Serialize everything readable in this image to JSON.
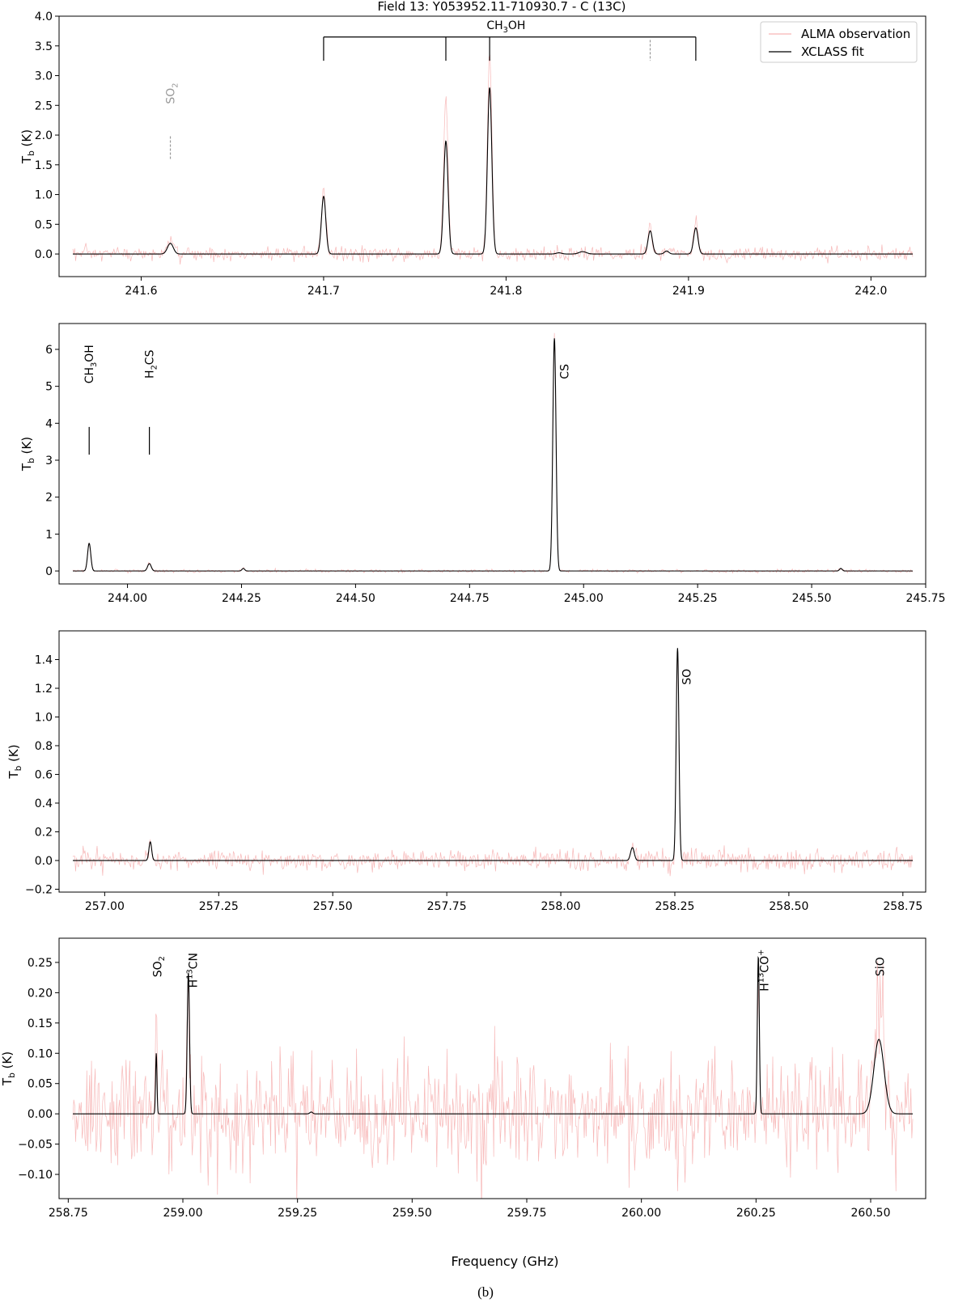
{
  "figure": {
    "title": "Field 13: Y053952.11-710930.7 - C (13C)",
    "caption": "(b)",
    "xlabel": "Frequency (GHz)"
  },
  "legend": {
    "placement": "top-right",
    "entries": [
      {
        "label": "ALMA observation",
        "color": "#f4a0a0"
      },
      {
        "label": "XCLASS fit",
        "color": "#000000"
      }
    ]
  },
  "colors": {
    "observation": "#f4a0a0",
    "fit": "#000000",
    "secondary_marker": "#999999"
  },
  "chart_data": [
    {
      "type": "line",
      "ylabel": "T_b (K)",
      "xlim": [
        241.555,
        242.03
      ],
      "ylim": [
        -0.38,
        4.0
      ],
      "xticks": [
        241.6,
        241.7,
        241.8,
        241.9,
        242.0
      ],
      "xtick_labels": [
        "241.6",
        "241.7",
        "241.8",
        "241.9",
        "242.0"
      ],
      "yticks": [
        0.0,
        0.5,
        1.0,
        1.5,
        2.0,
        2.5,
        3.0,
        3.5,
        4.0
      ],
      "ytick_labels": [
        "0.0",
        "0.5",
        "1.0",
        "1.5",
        "2.0",
        "2.5",
        "3.0",
        "3.5",
        "4.0"
      ],
      "noise_rms": 0.06,
      "series": [
        {
          "name": "XCLASS fit",
          "peaks": [
            [
              241.616,
              0.18,
              0.0016
            ],
            [
              241.7,
              0.97,
              0.0012
            ],
            [
              241.767,
              1.9,
              0.0012
            ],
            [
              241.791,
              2.8,
              0.0012
            ],
            [
              241.829,
              0.02,
              0.0015
            ],
            [
              241.842,
              0.04,
              0.002
            ],
            [
              241.879,
              0.39,
              0.0012
            ],
            [
              241.888,
              0.05,
              0.0012
            ],
            [
              241.904,
              0.44,
              0.0012
            ]
          ]
        },
        {
          "name": "ALMA observation",
          "peak_scale": [
            1.2,
            1.05,
            1.4,
            1.2,
            1.0,
            1.0,
            1.0,
            1.0,
            1.3
          ]
        }
      ],
      "annotations": [
        {
          "label": "SO2",
          "secondary": true,
          "x": 241.616,
          "y_text": 2.7,
          "tick": [
            1.6,
            2.0
          ]
        },
        {
          "label": "CH3OH",
          "bracket": {
            "y_top": 3.65,
            "y_bottom": 3.25,
            "x_start": 241.7,
            "x_end": 241.904,
            "legs": [
              241.7,
              241.767,
              241.791,
              241.904
            ],
            "dashed_legs": [
              241.879
            ],
            "label_x": 241.8,
            "label_y": 3.78
          }
        }
      ]
    },
    {
      "type": "line",
      "ylabel": "T_b (K)",
      "xlim": [
        243.85,
        245.75
      ],
      "ylim": [
        -0.35,
        6.7
      ],
      "xticks": [
        244.0,
        244.25,
        244.5,
        244.75,
        245.0,
        245.25,
        245.5,
        245.75
      ],
      "xtick_labels": [
        "244.00",
        "244.25",
        "244.50",
        "244.75",
        "245.00",
        "245.25",
        "245.50",
        "245.75"
      ],
      "yticks": [
        0,
        1,
        2,
        3,
        4,
        5,
        6
      ],
      "ytick_labels": [
        "0",
        "1",
        "2",
        "3",
        "4",
        "5",
        "6"
      ],
      "noise_rms": 0.02,
      "series": [
        {
          "name": "XCLASS fit",
          "peaks": [
            [
              243.916,
              0.75,
              0.0035
            ],
            [
              244.048,
              0.2,
              0.004
            ],
            [
              244.254,
              0.07,
              0.003
            ],
            [
              244.936,
              6.3,
              0.0035
            ],
            [
              245.564,
              0.07,
              0.003
            ]
          ]
        },
        {
          "name": "ALMA observation",
          "peak_scale": [
            1.0,
            1.0,
            1.0,
            1.02,
            1.0
          ]
        }
      ],
      "annotations": [
        {
          "label": "CH3OH",
          "x": 243.916,
          "y_text": 5.6,
          "tick": [
            3.15,
            3.9
          ]
        },
        {
          "label": "H2CS",
          "x": 244.048,
          "y_text": 5.6,
          "tick": [
            3.15,
            3.9
          ]
        },
        {
          "label": "CS",
          "x": 244.958,
          "y_text": 5.4
        }
      ]
    },
    {
      "type": "line",
      "ylabel": "T_b (K)",
      "xlim": [
        256.9,
        258.8
      ],
      "ylim": [
        -0.22,
        1.6
      ],
      "xticks": [
        257.0,
        257.25,
        257.5,
        257.75,
        258.0,
        258.25,
        258.5,
        258.75
      ],
      "xtick_labels": [
        "257.00",
        "257.25",
        "257.50",
        "257.75",
        "258.00",
        "258.25",
        "258.50",
        "258.75"
      ],
      "yticks": [
        -0.2,
        0.0,
        0.2,
        0.4,
        0.6,
        0.8,
        1.0,
        1.2,
        1.4
      ],
      "ytick_labels": [
        "−0.2",
        "0.0",
        "0.2",
        "0.4",
        "0.6",
        "0.8",
        "1.0",
        "1.2",
        "1.4"
      ],
      "noise_rms": 0.035,
      "series": [
        {
          "name": "XCLASS fit",
          "peaks": [
            [
              257.1,
              0.13,
              0.003
            ],
            [
              258.157,
              0.09,
              0.004
            ],
            [
              258.256,
              1.48,
              0.003
            ]
          ]
        },
        {
          "name": "ALMA observation",
          "peak_scale": [
            1.0,
            1.0,
            1.0
          ]
        }
      ],
      "annotations": [
        {
          "label": "SO",
          "x": 258.276,
          "y_text": 1.28
        }
      ]
    },
    {
      "type": "line",
      "ylabel": "T_b (K)",
      "xlim": [
        258.73,
        260.62
      ],
      "ylim": [
        -0.14,
        0.29
      ],
      "xticks": [
        258.75,
        259.0,
        259.25,
        259.5,
        259.75,
        260.0,
        260.25,
        260.5
      ],
      "xtick_labels": [
        "258.75",
        "259.00",
        "259.25",
        "259.50",
        "259.75",
        "260.00",
        "260.25",
        "260.50"
      ],
      "yticks": [
        -0.1,
        -0.05,
        0.0,
        0.05,
        0.1,
        0.15,
        0.2,
        0.25
      ],
      "ytick_labels": [
        "−0.10",
        "−0.05",
        "0.00",
        "0.05",
        "0.10",
        "0.15",
        "0.20",
        "0.25"
      ],
      "noise_rms": 0.045,
      "series": [
        {
          "name": "XCLASS fit",
          "peaks": [
            [
              258.942,
              0.1,
              0.0015
            ],
            [
              259.012,
              0.233,
              0.0025
            ],
            [
              259.28,
              0.003,
              0.003
            ],
            [
              260.255,
              0.26,
              0.0022
            ],
            [
              260.518,
              0.123,
              0.011
            ]
          ]
        },
        {
          "name": "ALMA observation",
          "peak_scale": [
            1.85,
            1.0,
            1.0,
            1.0,
            1.5
          ]
        }
      ],
      "annotations": [
        {
          "label": "SO2",
          "x": 258.944,
          "y_text": 0.243
        },
        {
          "label": "H13CN",
          "x": 259.022,
          "y_text": 0.237
        },
        {
          "label": "H13CO+",
          "x": 260.268,
          "y_text": 0.237
        },
        {
          "label": "SiO",
          "x": 260.52,
          "y_text": 0.243
        }
      ]
    }
  ]
}
